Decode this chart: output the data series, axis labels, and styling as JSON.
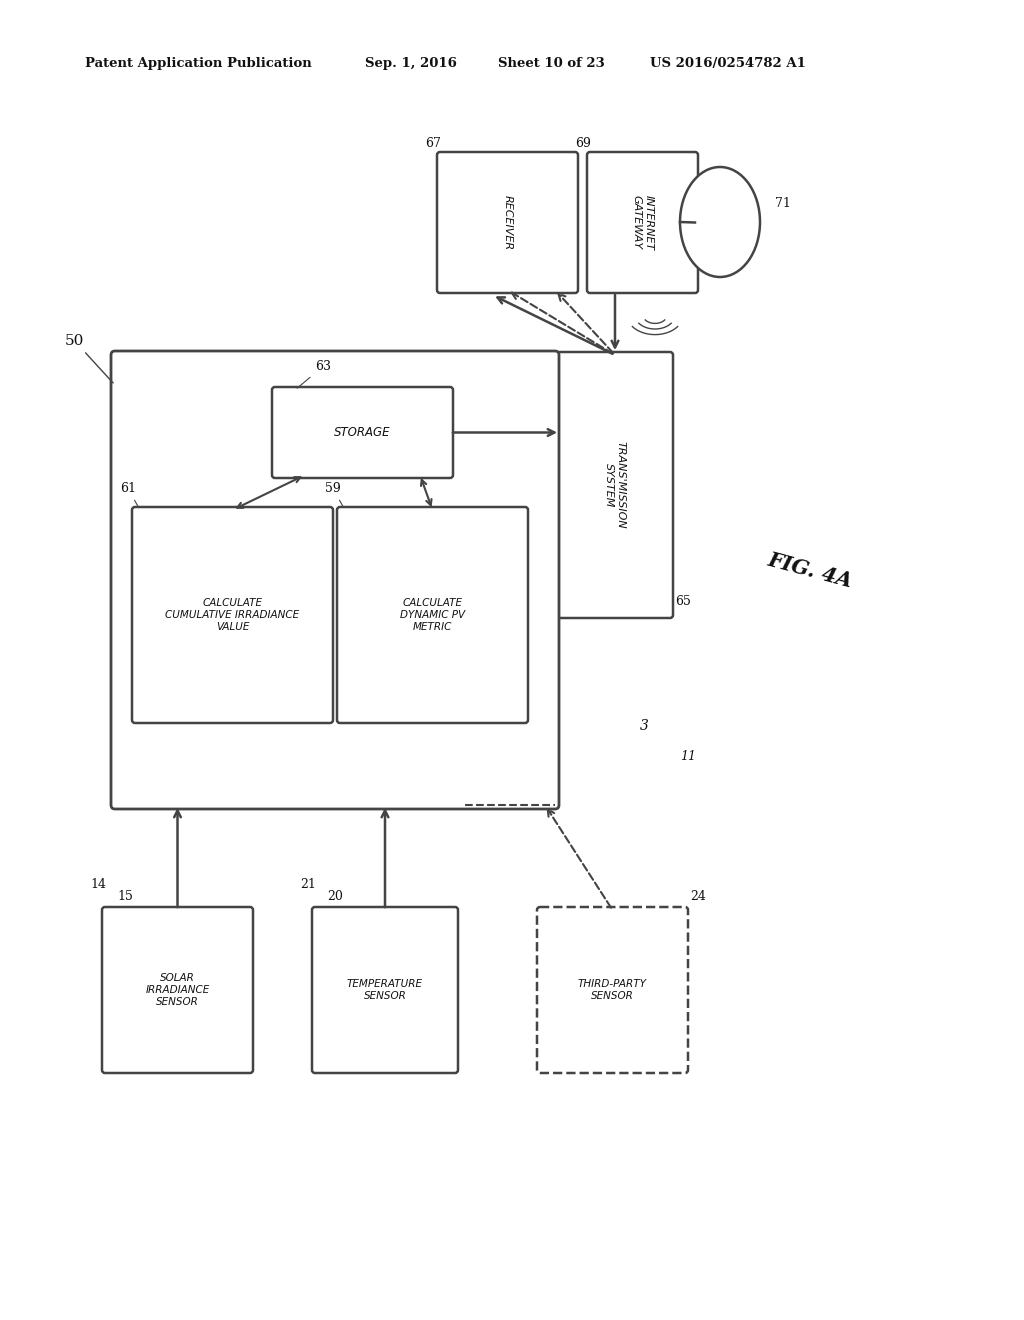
{
  "bg": "#f5f5f0",
  "line_color": "#444444",
  "header_left": "Patent Application Publication",
  "header_mid1": "Sep. 1, 2016",
  "header_mid2": "Sheet 10 of 23",
  "header_right": "US 2016/0254782 A1",
  "fig_label": "FIG. 4A",
  "label_50": "50",
  "label_63": "63",
  "label_61": "61",
  "label_59": "59",
  "label_65": "65",
  "label_67": "67",
  "label_69": "69",
  "label_71": "71",
  "label_14": "14",
  "label_15": "15",
  "label_20": "20",
  "label_21": "21",
  "label_24": "24",
  "text_storage": "STORAGE",
  "text_calc_irr": "CALCULATE\nCUMULATIVE IRRADIANCE\nVALUE",
  "text_calc_dyn": "CALCULATE\nDYNAMIC PV\nMETRIC",
  "text_trans": "TRANS'MISSION\nSYSTEM",
  "text_recv": "RECEIVER",
  "text_igw": "INTERNET\nGATEWAY",
  "text_solar": "SOLAR\nIRRADIANCE\nSENSOR",
  "text_temp": "TEMPERATURE\nSENSOR",
  "text_third": "THIRD-PARTY\nSENSOR",
  "note_label": "3",
  "note_label2": "11"
}
